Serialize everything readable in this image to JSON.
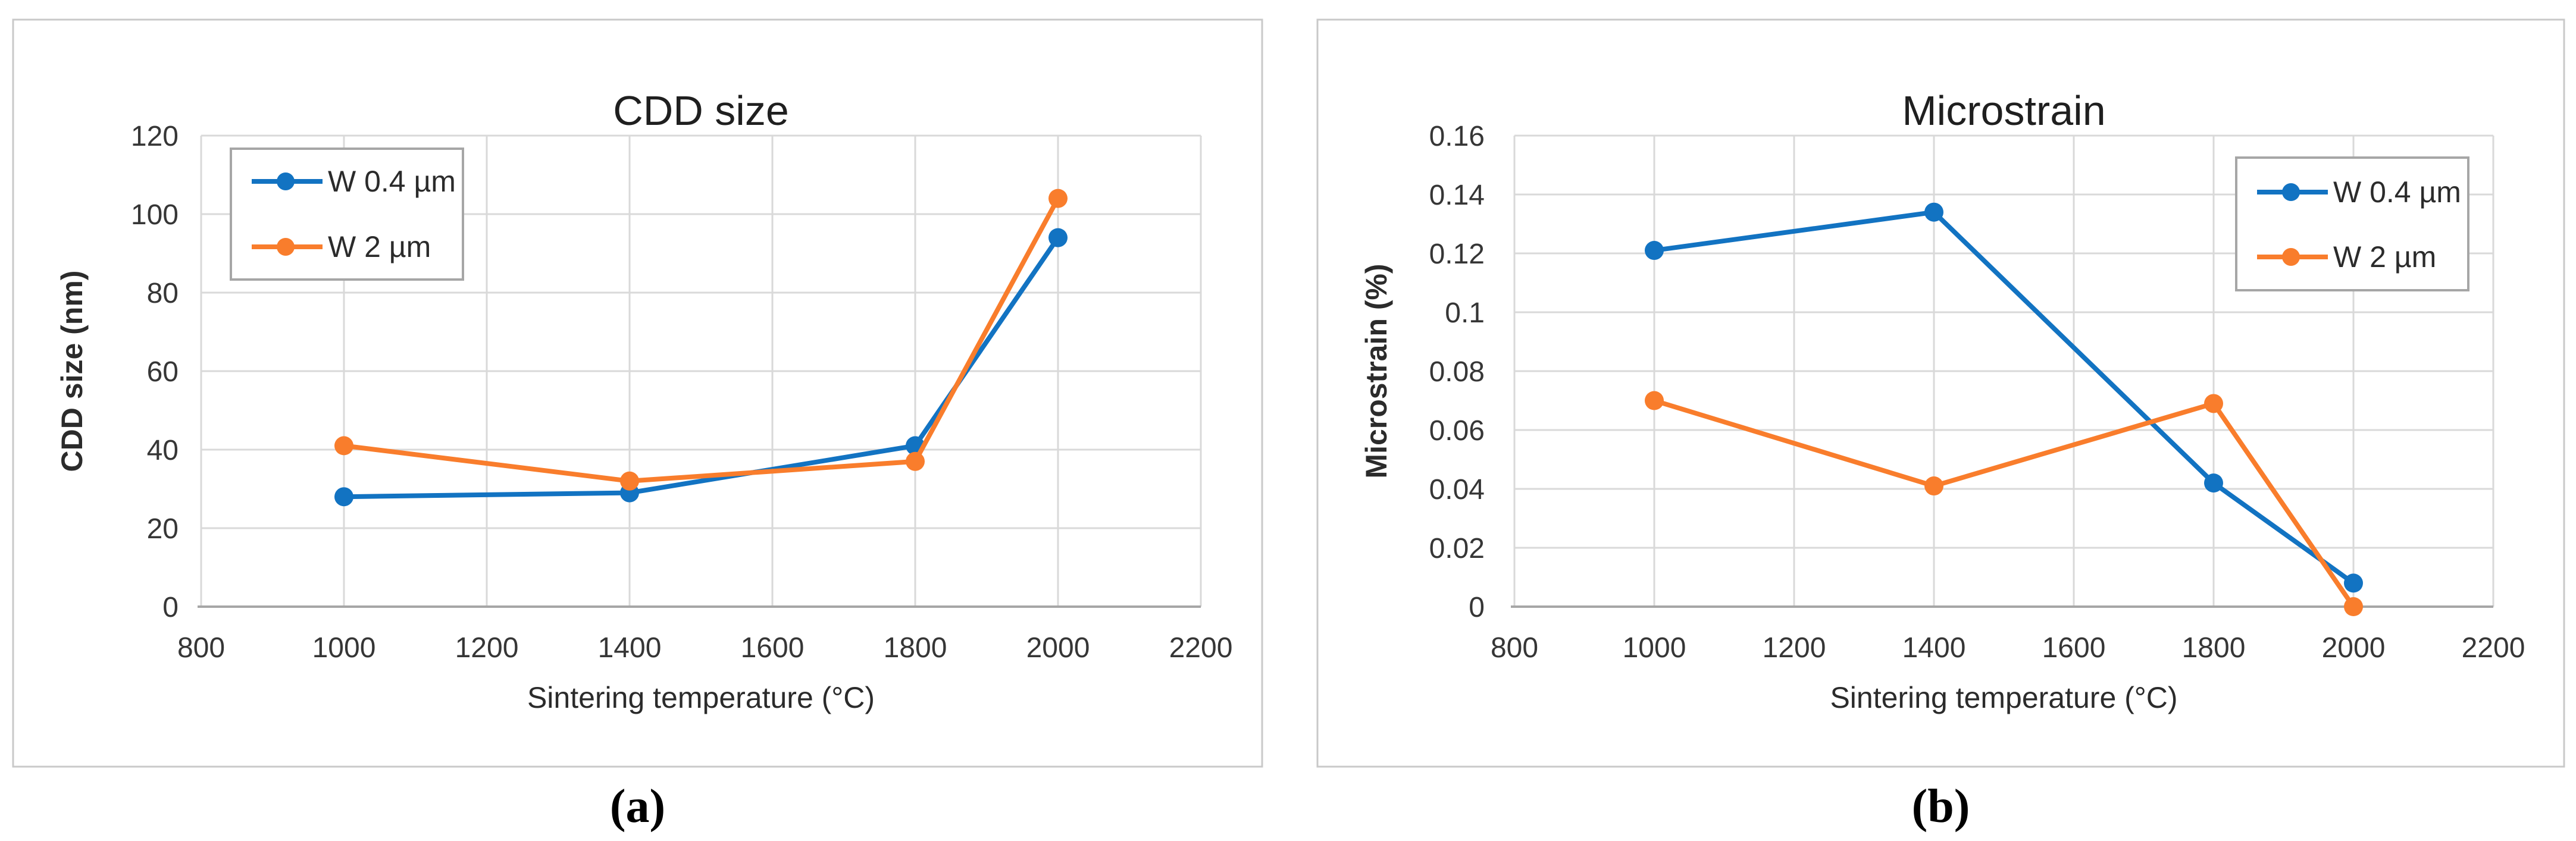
{
  "figure": {
    "captions": [
      "(a)",
      "(b)"
    ]
  },
  "colors": {
    "series_blue": "#1273c2",
    "series_orange": "#f97d2c",
    "gridline": "#d9d9d9",
    "axis_line": "#a6a6a6",
    "panel_border": "#c9c9c9",
    "legend_border": "#a6a6a6",
    "text": "#2b2b2b"
  },
  "chart_data": [
    {
      "type": "line",
      "title": "CDD size",
      "xlabel": "Sintering temperature (°C)",
      "ylabel": "CDD size (nm)",
      "xlim": [
        800,
        2200
      ],
      "ylim": [
        0,
        120
      ],
      "grid": true,
      "legend_position": "top-left",
      "xticks": [
        800,
        1000,
        1200,
        1400,
        1600,
        1800,
        2000,
        2200
      ],
      "xtick_labels": [
        "800",
        "1000",
        "1200",
        "1400",
        "1600",
        "1800",
        "2000",
        "2200"
      ],
      "yticks": [
        0,
        20,
        40,
        60,
        80,
        100,
        120
      ],
      "ytick_labels": [
        "0",
        "20",
        "40",
        "60",
        "80",
        "100",
        "120"
      ],
      "x": [
        1000,
        1400,
        1800,
        2000
      ],
      "series": [
        {
          "name": "W 0.4 µm",
          "color": "#1273c2",
          "values": [
            28,
            29,
            41,
            94
          ]
        },
        {
          "name": "W 2 µm",
          "color": "#f97d2c",
          "values": [
            41,
            32,
            37,
            104
          ]
        }
      ]
    },
    {
      "type": "line",
      "title": "Microstrain",
      "xlabel": "Sintering temperature (°C)",
      "ylabel": "Microstrain (%)",
      "xlim": [
        800,
        2200
      ],
      "ylim": [
        0,
        0.16
      ],
      "grid": true,
      "legend_position": "top-right",
      "xticks": [
        800,
        1000,
        1200,
        1400,
        1600,
        1800,
        2000,
        2200
      ],
      "xtick_labels": [
        "800",
        "1000",
        "1200",
        "1400",
        "1600",
        "1800",
        "2000",
        "2200"
      ],
      "yticks": [
        0,
        0.02,
        0.04,
        0.06,
        0.08,
        0.1,
        0.12,
        0.14,
        0.16
      ],
      "ytick_labels": [
        "0",
        "0.02",
        "0.04",
        "0.06",
        "0.08",
        "0.1",
        "0.12",
        "0.14",
        "0.16"
      ],
      "x": [
        1000,
        1400,
        1800,
        2000
      ],
      "series": [
        {
          "name": "W 0.4 µm",
          "color": "#1273c2",
          "values": [
            0.121,
            0.134,
            0.042,
            0.008
          ]
        },
        {
          "name": "W 2 µm",
          "color": "#f97d2c",
          "values": [
            0.07,
            0.041,
            0.069,
            0
          ]
        }
      ]
    }
  ]
}
